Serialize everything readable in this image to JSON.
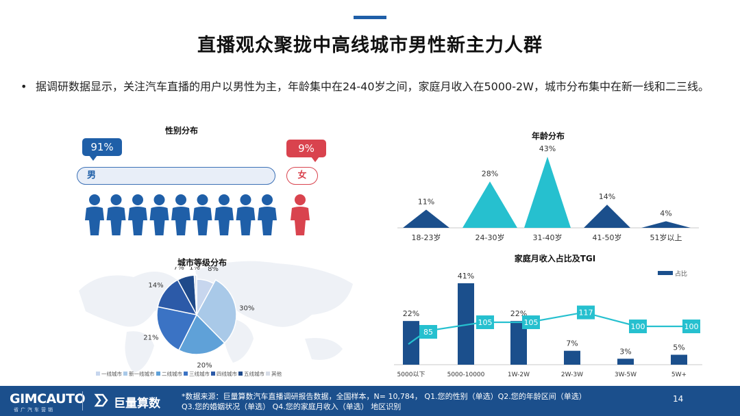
{
  "header": {
    "title": "直播观众聚拢中高线城市男性新主力人群"
  },
  "bullet": {
    "dot": "•",
    "text": "据调研数据显示，关注汽车直播的用户以男性为主，年龄集中在24-40岁之间，家庭月收入在5000-2W，城市分布集中在新一线和二三线。"
  },
  "gender": {
    "title": "性别分布",
    "male_percent": "91%",
    "female_percent": "9%",
    "male_label": "男",
    "female_label": "女",
    "male_icon_count": 9,
    "female_icon_count": 1,
    "colors": {
      "male": "#1f5fa8",
      "female": "#d9434e"
    }
  },
  "footer": {
    "logo1": "GIMCAUTO",
    "logo1_sub": "省广汽车营销",
    "logo2": "巨量算数",
    "note_line1": "*数据来源：巨量算数汽车直播调研报告数据，全国样本，N= 10,784， Q1.您的性别（单选）Q2.您的年龄区间（单选）",
    "note_line2": "Q3.您的婚姻状况（单选） Q4.您的家庭月收入（单选） 地区识别",
    "page": "14"
  },
  "chart_data": [
    {
      "type": "pie",
      "title": "城市等级分布",
      "categories": [
        "一线城市",
        "新一线城市",
        "二线城市",
        "三线城市",
        "四线城市",
        "五线城市",
        "其他"
      ],
      "values": [
        8,
        30,
        20,
        21,
        14,
        7,
        1
      ],
      "labels": [
        "8%",
        "30%",
        "20%",
        "21%",
        "14%",
        "7%",
        "1%"
      ],
      "colors": [
        "#c7d6ee",
        "#a9c9e8",
        "#5fa1d8",
        "#3b73c4",
        "#2c5aa8",
        "#1f4a8a",
        "#d6dce6"
      ],
      "legend": "bottom"
    },
    {
      "type": "area",
      "title": "年龄分布",
      "categories": [
        "18-23岁",
        "24-30岁",
        "31-40岁",
        "41-50岁",
        "51岁以上"
      ],
      "values": [
        11,
        28,
        43,
        14,
        4
      ],
      "labels": [
        "11%",
        "28%",
        "43%",
        "14%",
        "4%"
      ],
      "colors": [
        "#1b4f8c",
        "#26c0cf",
        "#26c0cf",
        "#1b4f8c",
        "#1b4f8c"
      ]
    },
    {
      "type": "bar",
      "title": "家庭月收入占比及TGI",
      "legend_label": "占比",
      "legend": "top-right",
      "categories": [
        "5000以下",
        "5000-10000",
        "1W-2W",
        "2W-3W",
        "3W-5W",
        "5W+"
      ],
      "series": [
        {
          "name": "占比",
          "values": [
            22,
            41,
            22,
            7,
            3,
            5
          ],
          "labels": [
            "22%",
            "41%",
            "22%",
            "7%",
            "3%",
            "5%"
          ]
        },
        {
          "name": "",
          "type": "line",
          "values": [
            85,
            105,
            105,
            117,
            100,
            100
          ],
          "labels": [
            "85",
            "105",
            "105",
            "117",
            "100",
            "100"
          ]
        }
      ],
      "colors": {
        "bar": "#1b4f8c",
        "line": "#26c0cf"
      }
    }
  ]
}
